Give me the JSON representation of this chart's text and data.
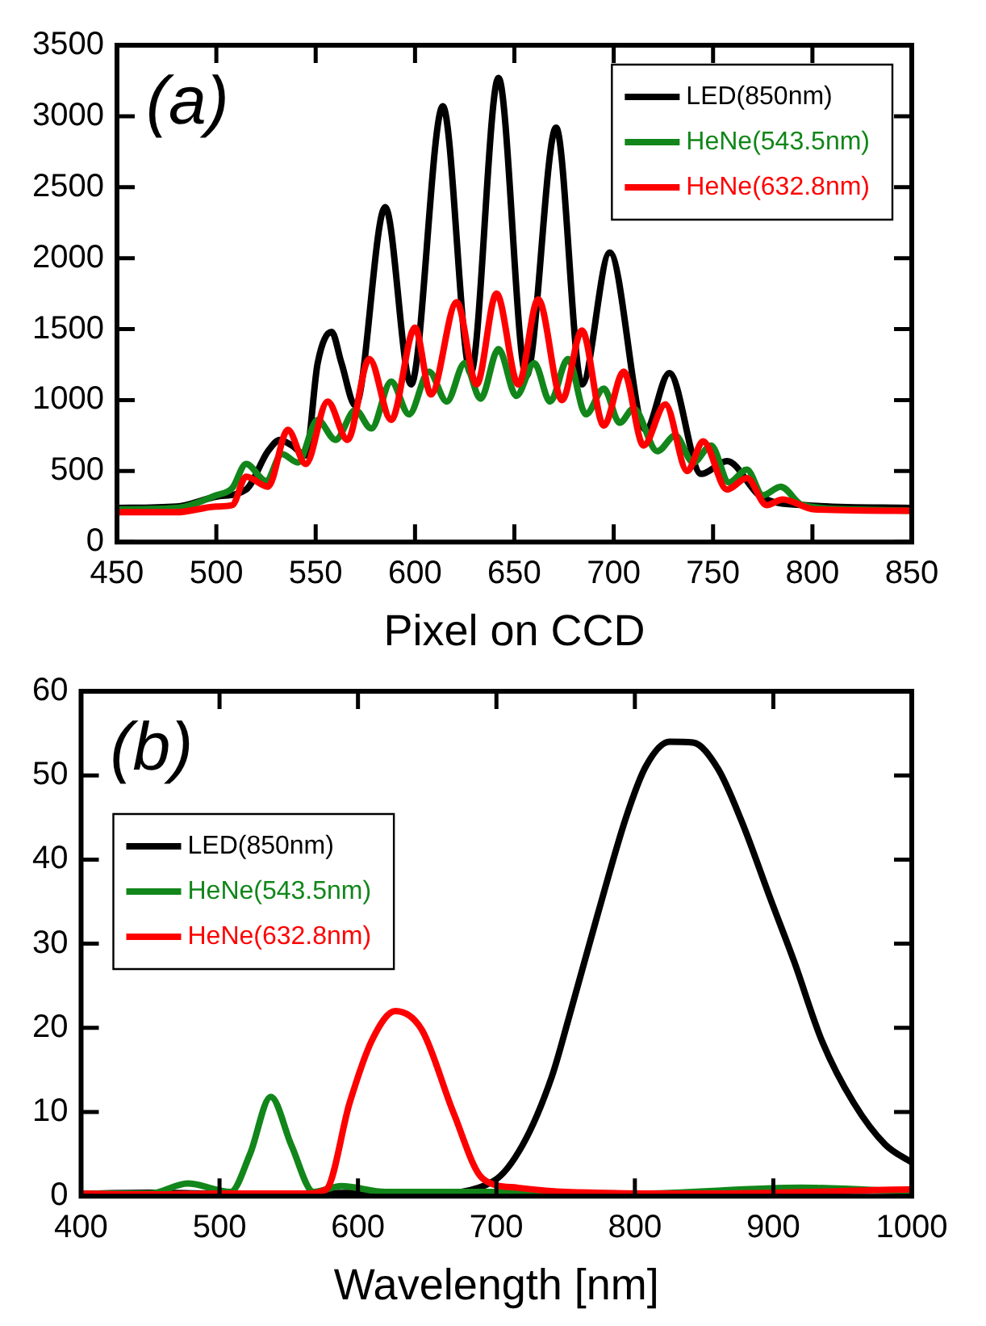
{
  "chart_data": [
    {
      "type": "line",
      "annotations": [
        "(a)"
      ],
      "xlabel": "Pixel on CCD",
      "xlim": [
        450,
        850
      ],
      "xticks": [
        450,
        500,
        550,
        600,
        650,
        700,
        750,
        800,
        850
      ],
      "ylim": [
        0,
        3500
      ],
      "yticks": [
        0,
        500,
        1000,
        1500,
        2000,
        2500,
        3000,
        3500
      ],
      "legend": "top right",
      "series": [
        {
          "name": "LED(850nm)",
          "color": "#000000",
          "x": [
            450,
            480,
            500,
            515,
            526,
            532,
            538,
            545,
            551,
            558,
            563,
            570,
            585,
            598,
            614,
            628,
            642,
            656,
            671,
            684,
            698,
            716,
            728,
            744,
            757,
            774,
            796,
            850
          ],
          "values": [
            240,
            250,
            320,
            370,
            640,
            720,
            680,
            610,
            1260,
            1480,
            1260,
            960,
            2360,
            1110,
            3070,
            1190,
            3270,
            1170,
            2920,
            1110,
            2040,
            790,
            1190,
            480,
            570,
            320,
            260,
            240
          ]
        },
        {
          "name": "HeNe(543.5nm)",
          "color": "#12861a",
          "x": [
            450,
            480,
            500,
            508,
            515,
            525,
            533,
            541,
            551,
            560,
            570,
            578,
            588,
            597,
            607,
            616,
            625,
            633,
            642,
            651,
            660,
            668,
            677,
            686,
            695,
            703,
            710,
            722,
            731,
            740,
            749,
            758,
            767,
            775,
            784,
            795,
            820,
            850
          ],
          "values": [
            230,
            240,
            330,
            380,
            550,
            430,
            620,
            560,
            860,
            720,
            930,
            800,
            1130,
            900,
            1200,
            990,
            1260,
            1010,
            1360,
            1030,
            1260,
            990,
            1290,
            900,
            1080,
            840,
            940,
            640,
            750,
            560,
            680,
            420,
            510,
            330,
            390,
            260,
            230,
            220
          ]
        },
        {
          "name": "HeNe(632.8nm)",
          "color": "#ff0000",
          "x": [
            450,
            480,
            500,
            508,
            515,
            526,
            536,
            545,
            556,
            566,
            577,
            588,
            600,
            608,
            621,
            631,
            641,
            652,
            662,
            674,
            684,
            695,
            705,
            715,
            726,
            737,
            745,
            757,
            767,
            777,
            785,
            801,
            850
          ],
          "values": [
            210,
            210,
            250,
            260,
            460,
            390,
            790,
            550,
            990,
            720,
            1290,
            860,
            1510,
            1040,
            1690,
            1110,
            1750,
            1110,
            1710,
            1000,
            1490,
            820,
            1200,
            680,
            970,
            500,
            710,
            370,
            450,
            260,
            300,
            230,
            220
          ]
        }
      ]
    },
    {
      "type": "line",
      "annotations": [
        "(b)"
      ],
      "xlabel": "Wavelength [nm]",
      "xlim": [
        400,
        1000
      ],
      "xticks": [
        400,
        500,
        600,
        700,
        800,
        900,
        1000
      ],
      "ylim": [
        0,
        60
      ],
      "yticks": [
        0,
        10,
        20,
        30,
        40,
        50,
        60
      ],
      "legend": "top left",
      "series": [
        {
          "name": "LED(850nm)",
          "color": "#000000",
          "x": [
            400,
            450,
            500,
            550,
            600,
            650,
            698,
            719,
            740,
            752,
            773,
            794,
            808,
            825,
            842,
            860,
            877,
            898,
            915,
            935,
            958,
            981,
            1000
          ],
          "values": [
            0.3,
            0.4,
            0.3,
            0.3,
            0.4,
            0.3,
            1.8,
            6.1,
            14.2,
            21,
            33.4,
            45.2,
            51.1,
            54,
            53.9,
            50.8,
            44.6,
            35.3,
            27.9,
            18.5,
            11.1,
            6.1,
            4
          ]
        },
        {
          "name": "HeNe(543.5nm)",
          "color": "#12861a",
          "x": [
            400,
            450,
            477,
            508,
            522,
            537,
            552,
            568,
            588,
            620,
            700,
            800,
            920,
            1000
          ],
          "values": [
            0.3,
            0.3,
            1.5,
            0.5,
            5,
            11.8,
            6,
            0.5,
            1.2,
            0.5,
            0.5,
            0.3,
            1,
            0.5
          ]
        },
        {
          "name": "HeNe(632.8nm)",
          "color": "#ff0000",
          "x": [
            400,
            450,
            500,
            560,
            577,
            594,
            610,
            627,
            646,
            669,
            690,
            715,
            750,
            850,
            1000
          ],
          "values": [
            0.3,
            0.2,
            0.3,
            0.3,
            0.8,
            11.1,
            18.5,
            22,
            19.8,
            9.9,
            2.1,
            1,
            0.5,
            0.3,
            0.8
          ]
        }
      ]
    }
  ]
}
